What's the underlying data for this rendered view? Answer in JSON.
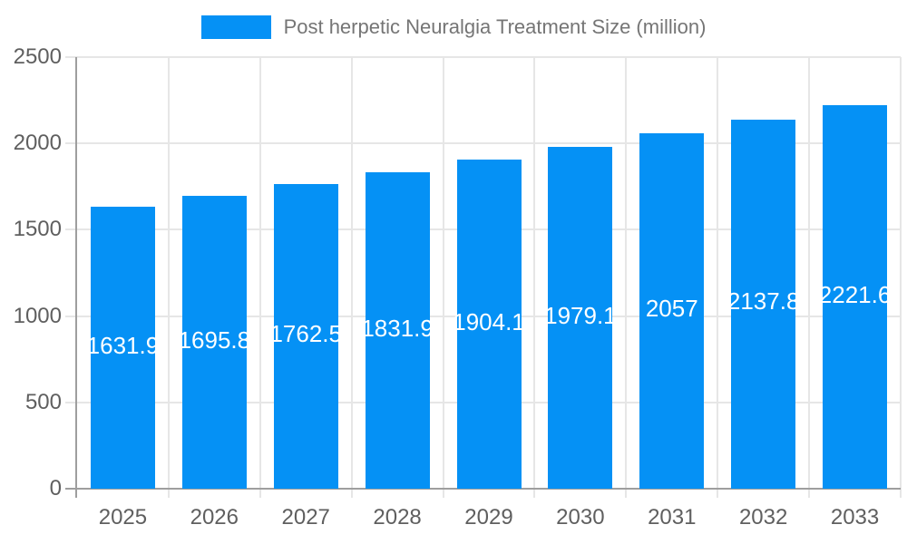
{
  "legend": {
    "label": "Post herpetic Neuralgia Treatment Size (million)"
  },
  "chart_data": {
    "type": "bar",
    "title": "Post herpetic Neuralgia Treatment Size (million)",
    "categories": [
      "2025",
      "2026",
      "2027",
      "2028",
      "2029",
      "2030",
      "2031",
      "2032",
      "2033"
    ],
    "values": [
      1631.9,
      1695.8,
      1762.5,
      1831.9,
      1904.1,
      1979.1,
      2057,
      2137.8,
      2221.6
    ],
    "value_labels": [
      "1631.9",
      "1695.8",
      "1762.5",
      "1831.9",
      "1904.1",
      "1979.1",
      "2057",
      "2137.8",
      "2221.6"
    ],
    "xlabel": "",
    "ylabel": "",
    "ylim": [
      0,
      2500
    ],
    "yticks": [
      0,
      500,
      1000,
      1500,
      2000,
      2500
    ],
    "grid": true,
    "legend_position": "top",
    "value_label_position": "inside-center"
  },
  "colors": {
    "bar": "#0591f5",
    "grid": "#e6e6e6",
    "axis": "#9e9e9e",
    "tick_text": "#5f5f5f",
    "legend_text": "#757575",
    "value_text": "#ffffff",
    "background": "#ffffff"
  }
}
